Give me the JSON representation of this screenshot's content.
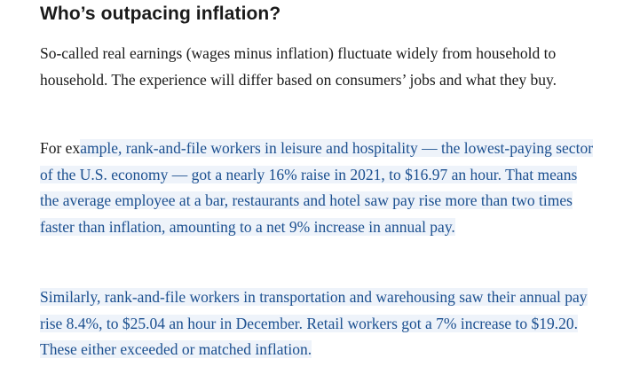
{
  "article": {
    "heading": "Who’s outpacing inflation?",
    "paragraph1": "So-called real earnings (wages minus inflation) fluctuate widely from household to household. The experience will differ based on consumers’ jobs and what they buy.",
    "paragraph2": {
      "lead": "For ex",
      "highlighted": "ample, rank-and-file workers in leisure and hospitality — the lowest-paying sector of the U.S. economy — got a nearly 16% raise in 2021, to $16.97 an hour. That means the average employee at a bar, restaurants and hotel saw pay rise more than two times faster than inflation, amounting to a net 9% increase in annual pay."
    },
    "paragraph3": "Similarly, rank-and-file workers in transportation and warehousing saw their annual pay rise 8.4%, to $25.04 an hour in December. Retail workers got a 7% increase to $19.20. These either exceeded or matched inflation."
  },
  "colors": {
    "text": "#1a1a1a",
    "highlight_text": "#1b4f8f",
    "highlight_background": "#eef3fa"
  }
}
